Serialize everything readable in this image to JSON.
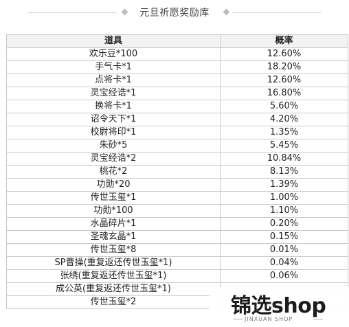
{
  "header": {
    "title": "元旦祈愿奖励库"
  },
  "table": {
    "headers": [
      "道具",
      "概率"
    ],
    "rows": [
      [
        "欢乐豆*100",
        "12.60%"
      ],
      [
        "手气卡*1",
        "18.20%"
      ],
      [
        "点将卡*1",
        "12.60%"
      ],
      [
        "灵宝经诰*1",
        "16.80%"
      ],
      [
        "换将卡*1",
        "5.60%"
      ],
      [
        "诏令天下*1",
        "4.20%"
      ],
      [
        "校尉将印*1",
        "1.35%"
      ],
      [
        "朱砂*5",
        "5.45%"
      ],
      [
        "灵宝经诰*2",
        "10.84%"
      ],
      [
        "桃花*2",
        "8.13%"
      ],
      [
        "功勋*20",
        "1.39%"
      ],
      [
        "传世玉玺*1",
        "1.00%"
      ],
      [
        "功勋*100",
        "1.10%"
      ],
      [
        "水晶碎片*1",
        "0.20%"
      ],
      [
        "圣魂玄晶*1",
        "0.15%"
      ],
      [
        "传世玉玺*8",
        "0.01%"
      ],
      [
        "SP曹操(重复返还传世玉玺*1)",
        "0.04%"
      ],
      [
        "张绣(重复返还传世玉玺*1)",
        "0.06%"
      ],
      [
        "成公英(重复返还传世玉玺*1)",
        ""
      ],
      [
        "传世玉玺*2",
        ""
      ]
    ]
  },
  "watermark": {
    "brand": "锦选shop",
    "sub": "JINXUAN SHOP"
  }
}
